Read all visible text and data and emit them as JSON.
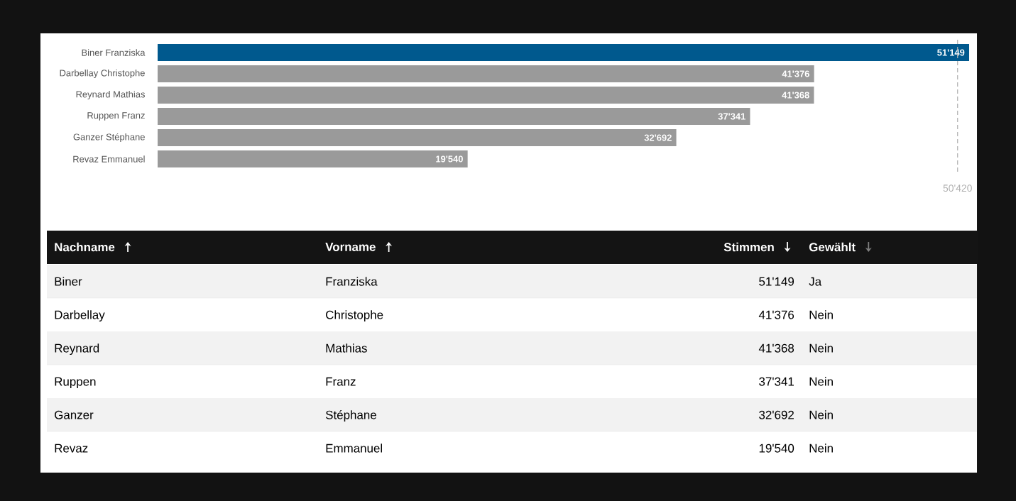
{
  "chart_data": {
    "type": "bar",
    "orientation": "horizontal",
    "categories": [
      "Biner Franziska",
      "Darbellay Christophe",
      "Reynard Mathias",
      "Ruppen Franz",
      "Ganzer Stéphane",
      "Revaz Emmanuel"
    ],
    "values": [
      51149,
      41376,
      41368,
      37341,
      32692,
      19540
    ],
    "value_labels": [
      "51'149",
      "41'376",
      "41'368",
      "37'341",
      "32'692",
      "19'540"
    ],
    "colors": [
      "#00598e",
      "#9a9a9a",
      "#9a9a9a",
      "#9a9a9a",
      "#9a9a9a",
      "#9a9a9a"
    ],
    "xlim": [
      0,
      51149
    ],
    "ref_lines": [
      {
        "axis": "x",
        "value": 50420,
        "label": "50'420",
        "color": "#b0b0b0",
        "line_style": "dashed"
      }
    ],
    "annotations": [
      "Nachname",
      "Vorname",
      "Stimmen",
      "Gewählt",
      "Biner",
      "Franziska",
      "Ja",
      "Darbellay",
      "Christophe",
      "Nein",
      "Reynard",
      "Mathias",
      "Nein",
      "Ruppen",
      "Franz",
      "Nein",
      "Ganzer",
      "Stéphane",
      "Nein",
      "Revaz",
      "Emmanuel",
      "Nein"
    ]
  }
}
